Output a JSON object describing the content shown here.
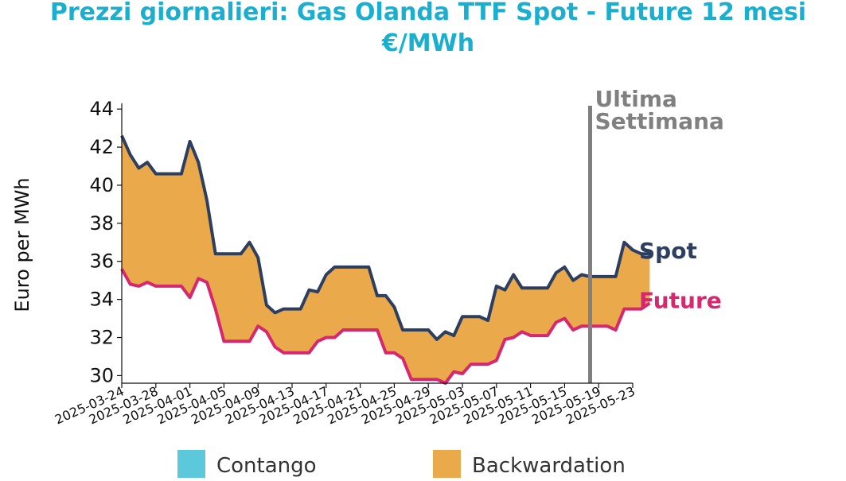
{
  "chart_data": {
    "type": "line",
    "title": "Prezzi giornalieri: Gas Olanda TTF Spot - Future 12 mesi",
    "subtitle": "€/MWh",
    "ylabel": "Euro per MWh",
    "xlabel": "",
    "ylim": [
      29.6,
      44.3
    ],
    "yticks": [
      30,
      32,
      34,
      36,
      38,
      40,
      42,
      44
    ],
    "x_start": "2025-03-24",
    "x_end": "2025-05-23",
    "xticks": [
      "2025-03-24",
      "2025-03-28",
      "2025-04-01",
      "2025-04-05",
      "2025-04-09",
      "2025-04-13",
      "2025-04-17",
      "2025-04-21",
      "2025-04-25",
      "2025-04-29",
      "2025-05-03",
      "2025-05-07",
      "2025-05-11",
      "2025-05-15",
      "2025-05-19",
      "2025-05-23"
    ],
    "series": [
      {
        "name": "Spot",
        "color": "#2d3e5f",
        "points": [
          [
            "2025-03-24",
            42.6
          ],
          [
            "2025-03-25",
            41.6
          ],
          [
            "2025-03-26",
            40.9
          ],
          [
            "2025-03-27",
            41.2
          ],
          [
            "2025-03-28",
            40.6
          ],
          [
            "2025-03-31",
            40.6
          ],
          [
            "2025-04-01",
            42.3
          ],
          [
            "2025-04-02",
            41.2
          ],
          [
            "2025-04-03",
            39.2
          ],
          [
            "2025-04-04",
            36.4
          ],
          [
            "2025-04-07",
            36.4
          ],
          [
            "2025-04-08",
            37.0
          ],
          [
            "2025-04-09",
            36.2
          ],
          [
            "2025-04-10",
            33.7
          ],
          [
            "2025-04-11",
            33.3
          ],
          [
            "2025-04-12",
            33.5
          ],
          [
            "2025-04-14",
            33.5
          ],
          [
            "2025-04-15",
            34.5
          ],
          [
            "2025-04-16",
            34.4
          ],
          [
            "2025-04-17",
            35.3
          ],
          [
            "2025-04-18",
            35.7
          ],
          [
            "2025-04-22",
            35.7
          ],
          [
            "2025-04-23",
            34.2
          ],
          [
            "2025-04-24",
            34.2
          ],
          [
            "2025-04-25",
            33.6
          ],
          [
            "2025-04-26",
            32.4
          ],
          [
            "2025-04-29",
            32.4
          ],
          [
            "2025-04-30",
            31.9
          ],
          [
            "2025-05-01",
            32.3
          ],
          [
            "2025-05-02",
            32.1
          ],
          [
            "2025-05-03",
            33.1
          ],
          [
            "2025-05-05",
            33.1
          ],
          [
            "2025-05-06",
            32.9
          ],
          [
            "2025-05-07",
            34.7
          ],
          [
            "2025-05-08",
            34.5
          ],
          [
            "2025-05-09",
            35.3
          ],
          [
            "2025-05-10",
            34.6
          ],
          [
            "2025-05-13",
            34.6
          ],
          [
            "2025-05-14",
            35.4
          ],
          [
            "2025-05-15",
            35.7
          ],
          [
            "2025-05-16",
            35.0
          ],
          [
            "2025-05-17",
            35.3
          ],
          [
            "2025-05-18",
            35.2
          ],
          [
            "2025-05-21",
            35.2
          ],
          [
            "2025-05-22",
            37.0
          ],
          [
            "2025-05-23",
            36.6
          ],
          [
            "2025-05-24",
            36.4
          ],
          [
            "2025-05-25",
            36.4
          ]
        ]
      },
      {
        "name": "Future",
        "color": "#d6286e",
        "points": [
          [
            "2025-03-24",
            35.6
          ],
          [
            "2025-03-25",
            34.8
          ],
          [
            "2025-03-26",
            34.7
          ],
          [
            "2025-03-27",
            34.9
          ],
          [
            "2025-03-28",
            34.7
          ],
          [
            "2025-03-31",
            34.7
          ],
          [
            "2025-04-01",
            34.1
          ],
          [
            "2025-04-02",
            35.1
          ],
          [
            "2025-04-03",
            34.9
          ],
          [
            "2025-04-04",
            33.5
          ],
          [
            "2025-04-05",
            31.8
          ],
          [
            "2025-04-08",
            31.8
          ],
          [
            "2025-04-09",
            32.6
          ],
          [
            "2025-04-10",
            32.3
          ],
          [
            "2025-04-11",
            31.5
          ],
          [
            "2025-04-12",
            31.2
          ],
          [
            "2025-04-15",
            31.2
          ],
          [
            "2025-04-16",
            31.8
          ],
          [
            "2025-04-17",
            32.0
          ],
          [
            "2025-04-18",
            32.0
          ],
          [
            "2025-04-19",
            32.4
          ],
          [
            "2025-04-23",
            32.4
          ],
          [
            "2025-04-24",
            31.2
          ],
          [
            "2025-04-25",
            31.2
          ],
          [
            "2025-04-26",
            30.9
          ],
          [
            "2025-04-27",
            29.8
          ],
          [
            "2025-04-30",
            29.8
          ],
          [
            "2025-05-01",
            29.6
          ],
          [
            "2025-05-02",
            30.2
          ],
          [
            "2025-05-03",
            30.1
          ],
          [
            "2025-05-04",
            30.6
          ],
          [
            "2025-05-06",
            30.6
          ],
          [
            "2025-05-07",
            30.8
          ],
          [
            "2025-05-08",
            31.9
          ],
          [
            "2025-05-09",
            32.0
          ],
          [
            "2025-05-10",
            32.3
          ],
          [
            "2025-05-11",
            32.1
          ],
          [
            "2025-05-13",
            32.1
          ],
          [
            "2025-05-14",
            32.8
          ],
          [
            "2025-05-15",
            33.0
          ],
          [
            "2025-05-16",
            32.4
          ],
          [
            "2025-05-17",
            32.6
          ],
          [
            "2025-05-20",
            32.6
          ],
          [
            "2025-05-21",
            32.4
          ],
          [
            "2025-05-22",
            33.5
          ],
          [
            "2025-05-24",
            33.5
          ],
          [
            "2025-05-25",
            33.8
          ]
        ]
      }
    ],
    "fill_between": {
      "contango_color": "#5bc8dc",
      "backwardation_color": "#eaaa4b"
    },
    "vline": {
      "label": "Ultima Settimana",
      "label_lines": [
        "Ultima",
        "Settimana"
      ],
      "x": "2025-05-18",
      "color": "#808080"
    },
    "legend": {
      "position": "bottom",
      "items": [
        {
          "label": "Contango",
          "color": "#5bc8dc"
        },
        {
          "label": "Backwardation",
          "color": "#eaaa4b"
        }
      ]
    },
    "grid": false
  },
  "colors": {
    "title": "#1aafcf",
    "axis": "#111111"
  }
}
